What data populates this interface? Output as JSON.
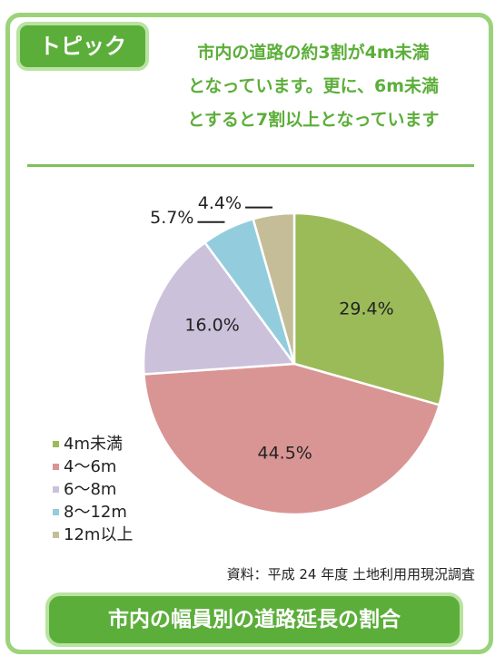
{
  "chart_data": {
    "type": "pie",
    "tag": "トピック",
    "headline": [
      "市内の道路の約3割が4m未満",
      "となっています。更に、6m未満",
      "とすると7割以上となっています"
    ],
    "title": "市内の幅員別の道路延長の割合",
    "source": "資料：平成 24 年度  土地利用用現況調査",
    "categories": [
      "4m未満",
      "4～6m",
      "6～8m",
      "8～12m",
      "12m以上"
    ],
    "values": [
      29.4,
      44.5,
      16.0,
      5.7,
      4.4
    ],
    "value_labels": [
      "29.4%",
      "44.5%",
      "16.0%",
      "5.7%",
      "4.4%"
    ],
    "colors": [
      "#9bbb59",
      "#d99594",
      "#ccc1da",
      "#93cddd",
      "#c4bd97"
    ],
    "legend": "bottom-left"
  }
}
